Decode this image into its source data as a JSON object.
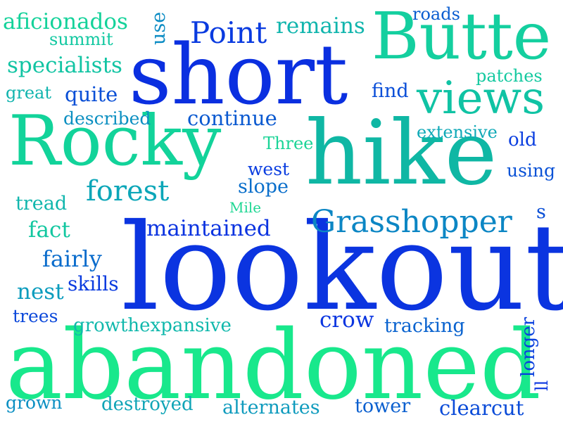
{
  "word_cloud": {
    "words": [
      {
        "text": "lookout",
        "color": "#0b34e0"
      },
      {
        "text": "abandoned",
        "color": "#18e88c"
      },
      {
        "text": "short",
        "color": "#0a2fe0"
      },
      {
        "text": "hike",
        "color": "#0fb7a4"
      },
      {
        "text": "Rocky",
        "color": "#12d39a"
      },
      {
        "text": "Butte",
        "color": "#14cf9f"
      },
      {
        "text": "views",
        "color": "#10c3a4"
      },
      {
        "text": "Grasshopper",
        "color": "#0c86c4"
      },
      {
        "text": "Point",
        "color": "#0a3be0"
      },
      {
        "text": "forest",
        "color": "#0ba6b8"
      },
      {
        "text": "maintained",
        "color": "#0b33e0"
      },
      {
        "text": "remains",
        "color": "#10b5ad"
      },
      {
        "text": "specialists",
        "color": "#11c4a3"
      },
      {
        "text": "aficionados",
        "color": "#14d29a"
      },
      {
        "text": "continue",
        "color": "#0a59d0"
      },
      {
        "text": "described",
        "color": "#0b8fc1"
      },
      {
        "text": "quite",
        "color": "#0a4fd6"
      },
      {
        "text": "crow",
        "color": "#0a35e0"
      },
      {
        "text": "tracking",
        "color": "#0a63cf"
      },
      {
        "text": "growthexpansive",
        "color": "#10b8ac"
      },
      {
        "text": "alternates",
        "color": "#0f9bbd"
      },
      {
        "text": "destroyed",
        "color": "#0fa4b6"
      },
      {
        "text": "clearcut",
        "color": "#0a4bd8"
      },
      {
        "text": "tower",
        "color": "#0a5fcf"
      },
      {
        "text": "fairly",
        "color": "#0a6ccc"
      },
      {
        "text": "fact",
        "color": "#12c7a0"
      },
      {
        "text": "nest",
        "color": "#0b9cbd"
      },
      {
        "text": "skills",
        "color": "#0a3bdf"
      },
      {
        "text": "trees",
        "color": "#0a47da"
      },
      {
        "text": "grown",
        "color": "#0c90c3"
      },
      {
        "text": "west",
        "color": "#0a3de0"
      },
      {
        "text": "slope",
        "color": "#0a6fcb"
      },
      {
        "text": "tread",
        "color": "#10b6ad"
      },
      {
        "text": "Mile",
        "color": "#1ed793"
      },
      {
        "text": "Three",
        "color": "#1bd497"
      },
      {
        "text": "extensive",
        "color": "#0fa9b7"
      },
      {
        "text": "old",
        "color": "#0a3ee0"
      },
      {
        "text": "using",
        "color": "#0a52d6"
      },
      {
        "text": "find",
        "color": "#0a4ed8"
      },
      {
        "text": "tower",
        "color": "#0a5fcf"
      },
      {
        "text": "patches",
        "color": "#14c9a0"
      },
      {
        "text": "roads",
        "color": "#0a5dd0"
      },
      {
        "text": "summit",
        "color": "#12c8a1"
      },
      {
        "text": "great",
        "color": "#10b4ae"
      },
      {
        "text": "use",
        "color": "#0c8cc4"
      },
      {
        "text": "s",
        "color": "#0a4fd6"
      },
      {
        "text": "longer",
        "color": "#0a41de"
      },
      {
        "text": "ll",
        "color": "#0a36e0"
      }
    ]
  }
}
